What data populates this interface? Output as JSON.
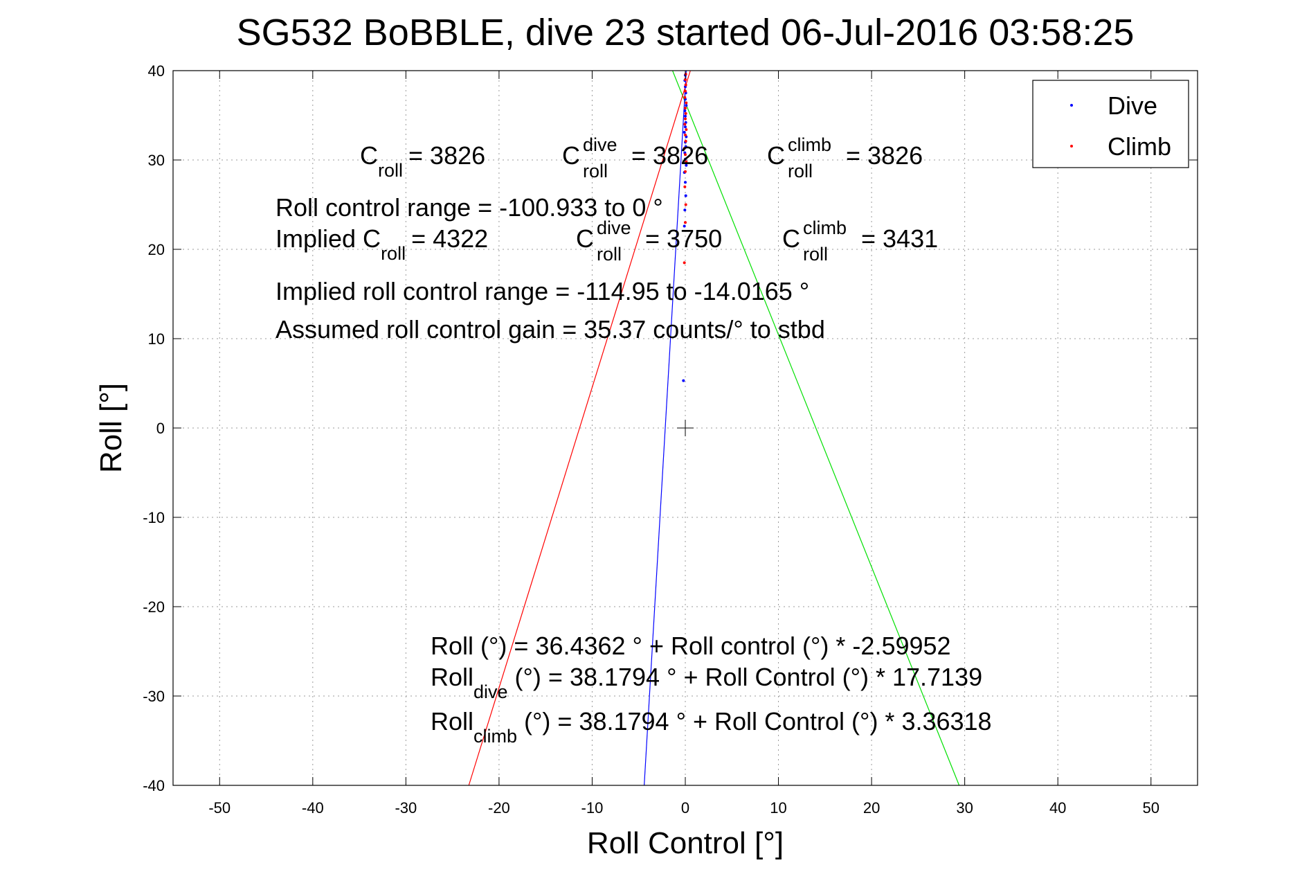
{
  "chart_data": {
    "type": "scatter",
    "title": "SG532 BoBBLE, dive 23 started 06-Jul-2016 03:58:25",
    "xlabel": "Roll Control [°]",
    "ylabel": "Roll [°]",
    "xlim": [
      -55,
      55
    ],
    "ylim": [
      -40,
      40
    ],
    "xticks": [
      -50,
      -40,
      -30,
      -20,
      -10,
      0,
      10,
      20,
      30,
      40,
      50
    ],
    "yticks": [
      -40,
      -30,
      -20,
      -10,
      0,
      10,
      20,
      30,
      40
    ],
    "xtick_labels": [
      "-50",
      "-40",
      "-30",
      "-20",
      "-10",
      "0",
      "10",
      "20",
      "30",
      "40",
      "50"
    ],
    "ytick_labels": [
      "-40",
      "-30",
      "-20",
      "-10",
      "0",
      "10",
      "20",
      "30",
      "40"
    ],
    "grid": true,
    "legend_position": "top-right",
    "series": [
      {
        "name": "Dive",
        "color": "#0000ff",
        "points": [
          [
            -0.2,
            5.3
          ],
          [
            -0.1,
            22.6
          ],
          [
            -0.05,
            24.4
          ],
          [
            0.05,
            26.0
          ],
          [
            0.0,
            27.5
          ],
          [
            -0.1,
            28.6
          ],
          [
            0.1,
            29.4
          ],
          [
            0.0,
            30.1
          ],
          [
            -0.05,
            30.8
          ],
          [
            0.05,
            31.5
          ],
          [
            0.0,
            32.0
          ],
          [
            0.1,
            32.6
          ],
          [
            -0.1,
            33.1
          ],
          [
            0.0,
            33.7
          ],
          [
            0.05,
            34.2
          ],
          [
            0.0,
            34.9
          ],
          [
            -0.05,
            35.5
          ],
          [
            0.1,
            36.1
          ],
          [
            0.0,
            36.8
          ],
          [
            0.05,
            37.5
          ],
          [
            0.0,
            38.2
          ],
          [
            -0.05,
            38.9
          ],
          [
            0.0,
            39.5
          ]
        ]
      },
      {
        "name": "Climb",
        "color": "#ff0000",
        "points": [
          [
            -0.1,
            18.5
          ],
          [
            0.0,
            23.0
          ],
          [
            0.05,
            25.0
          ],
          [
            -0.05,
            27.0
          ],
          [
            0.0,
            28.7
          ],
          [
            0.1,
            29.8
          ],
          [
            0.0,
            30.6
          ],
          [
            -0.1,
            31.3
          ],
          [
            0.05,
            32.1
          ],
          [
            0.0,
            32.8
          ],
          [
            0.1,
            33.4
          ],
          [
            -0.05,
            34.0
          ],
          [
            0.0,
            34.6
          ],
          [
            0.05,
            35.2
          ],
          [
            0.0,
            35.8
          ],
          [
            0.1,
            36.4
          ],
          [
            -0.05,
            37.0
          ],
          [
            0.0,
            37.7
          ],
          [
            0.05,
            38.4
          ],
          [
            0.0,
            39.0
          ],
          [
            0.05,
            39.6
          ]
        ]
      }
    ],
    "fit_lines": [
      {
        "kind": "overall",
        "color": "#00e000",
        "intercept": 36.4362,
        "slope": -2.59952
      },
      {
        "kind": "dive",
        "color": "#0000ff",
        "intercept": 38.1794,
        "slope": 17.7139
      },
      {
        "kind": "climb",
        "color": "#ff0000",
        "intercept": 38.1794,
        "slope": 3.36318
      }
    ],
    "annotations": {
      "c_roll_row": [
        {
          "base": "C",
          "sub": "roll",
          "sup": "",
          "value": "= 3826"
        },
        {
          "base": "C",
          "sub": "roll",
          "sup": "dive",
          "value": "= 3826"
        },
        {
          "base": "C",
          "sub": "roll",
          "sup": "climb",
          "value": "= 3826"
        }
      ],
      "roll_control_range": "Roll control range = -100.933 to 0 °",
      "implied_row": [
        {
          "base": "Implied C",
          "sub": "roll",
          "sup": "",
          "value": "= 4322"
        },
        {
          "base": "C",
          "sub": "roll",
          "sup": "dive",
          "value": "= 3750"
        },
        {
          "base": "C",
          "sub": "roll",
          "sup": "climb",
          "value": "= 3431"
        }
      ],
      "implied_range": "Implied roll control range = -114.95 to -14.0165 °",
      "assumed_gain": "Assumed roll control gain = 35.37 counts/° to stbd",
      "eq_overall": "Roll (°) = 36.4362 ° + Roll control (°) * -2.59952",
      "eq_dive": {
        "base": "Roll",
        "sub": "dive",
        "rest": " (°) = 38.1794 ° + Roll Control (°) * 17.7139"
      },
      "eq_climb": {
        "base": "Roll",
        "sub": "climb",
        "rest": " (°) = 38.1794 ° + Roll Control (°) * 3.36318"
      }
    }
  }
}
